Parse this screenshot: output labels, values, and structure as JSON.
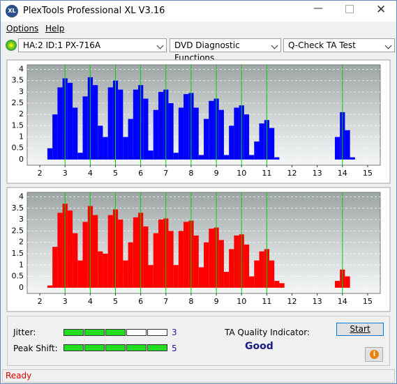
{
  "window": {
    "title": "PlexTools Professional XL V3.16",
    "status": "Ready"
  },
  "menu": [
    "Options",
    "Help"
  ],
  "toolbar": {
    "drive": "HA:2 ID:1  PX-716A",
    "function": "DVD Diagnostic Functions",
    "test": "Q-Check TA Test"
  },
  "chart_data": [
    {
      "type": "bar",
      "color": "#0000ff",
      "reference_color": "#00d000",
      "x": [
        2.4,
        2.6,
        2.8,
        3.0,
        3.2,
        3.4,
        3.6,
        3.8,
        4.0,
        4.2,
        4.4,
        4.6,
        4.8,
        5.0,
        5.2,
        5.4,
        5.6,
        5.8,
        6.0,
        6.2,
        6.4,
        6.6,
        6.8,
        7.0,
        7.2,
        7.4,
        7.6,
        7.8,
        8.0,
        8.2,
        8.4,
        8.6,
        8.8,
        9.0,
        9.2,
        9.4,
        9.6,
        9.8,
        10.0,
        10.2,
        10.4,
        10.6,
        10.8,
        11.0,
        11.2,
        11.4,
        11.6,
        11.8,
        12.0,
        12.2,
        12.4,
        12.6,
        12.8,
        13.0,
        13.2,
        13.4,
        13.6,
        13.8,
        14.0,
        14.2,
        14.4,
        14.6
      ],
      "values": [
        0.5,
        2.0,
        3.2,
        3.6,
        3.4,
        2.3,
        0.3,
        2.8,
        3.65,
        3.3,
        1.5,
        1.0,
        3.2,
        3.5,
        3.1,
        1.0,
        1.8,
        3.1,
        3.3,
        2.7,
        0.4,
        2.2,
        3.0,
        3.1,
        2.5,
        0.3,
        2.3,
        2.9,
        2.95,
        2.3,
        0.2,
        1.8,
        2.6,
        2.7,
        2.2,
        0.2,
        1.5,
        2.3,
        2.4,
        2.0,
        0.2,
        0.8,
        1.6,
        1.75,
        1.4,
        0.1,
        0,
        0,
        0,
        0,
        0,
        0,
        0,
        0,
        0,
        0,
        0,
        1.0,
        2.1,
        1.3,
        0.1,
        0
      ],
      "reference_lines": [
        3,
        4,
        5,
        6,
        7,
        8,
        9,
        10,
        11,
        14
      ],
      "xlim": [
        1.5,
        15.5
      ],
      "ylim": [
        -0.25,
        4.2
      ],
      "xticks": [
        2,
        3,
        4,
        5,
        6,
        7,
        8,
        9,
        10,
        11,
        12,
        13,
        14,
        15
      ],
      "yticks": [
        0,
        0.5,
        1,
        1.5,
        2,
        2.5,
        3,
        3.5,
        4
      ],
      "grid": true
    },
    {
      "type": "bar",
      "color": "#ff0000",
      "reference_color": "#00d000",
      "x": [
        2.4,
        2.6,
        2.8,
        3.0,
        3.2,
        3.4,
        3.6,
        3.8,
        4.0,
        4.2,
        4.4,
        4.6,
        4.8,
        5.0,
        5.2,
        5.4,
        5.6,
        5.8,
        6.0,
        6.2,
        6.4,
        6.6,
        6.8,
        7.0,
        7.2,
        7.4,
        7.6,
        7.8,
        8.0,
        8.2,
        8.4,
        8.6,
        8.8,
        9.0,
        9.2,
        9.4,
        9.6,
        9.8,
        10.0,
        10.2,
        10.4,
        10.6,
        10.8,
        11.0,
        11.2,
        11.4,
        11.6,
        11.8,
        12.0,
        12.2,
        12.4,
        12.6,
        12.8,
        13.0,
        13.2,
        13.4,
        13.6,
        13.8,
        14.0,
        14.2,
        14.4,
        14.6
      ],
      "values": [
        0.1,
        1.8,
        3.3,
        3.7,
        3.4,
        2.4,
        1.2,
        2.9,
        3.6,
        3.2,
        1.6,
        1.5,
        3.2,
        3.45,
        3.0,
        1.2,
        2.0,
        3.1,
        3.3,
        2.7,
        1.0,
        2.4,
        3.0,
        3.05,
        2.5,
        1.0,
        2.5,
        2.9,
        2.95,
        2.3,
        0.9,
        2.0,
        2.6,
        2.65,
        2.1,
        0.7,
        1.7,
        2.3,
        2.35,
        1.9,
        0.5,
        1.2,
        1.6,
        1.7,
        1.2,
        0.3,
        0.2,
        0,
        0,
        0,
        0,
        0,
        0,
        0,
        0,
        0,
        0,
        0.3,
        0.8,
        0.5,
        0,
        0
      ],
      "reference_lines": [
        3,
        4,
        5,
        6,
        7,
        8,
        9,
        10,
        11,
        14
      ],
      "xlim": [
        1.5,
        15.5
      ],
      "ylim": [
        -0.25,
        4.2
      ],
      "xticks": [
        2,
        3,
        4,
        5,
        6,
        7,
        8,
        9,
        10,
        11,
        12,
        13,
        14,
        15
      ],
      "yticks": [
        0,
        0.5,
        1,
        1.5,
        2,
        2.5,
        3,
        3.5,
        4
      ],
      "grid": true
    }
  ],
  "results": {
    "jitter": {
      "label": "Jitter:",
      "value": 3,
      "meter_max": 5
    },
    "peak_shift": {
      "label": "Peak Shift:",
      "value": 5,
      "meter_max": 5
    },
    "quality_label": "TA Quality Indicator:",
    "quality": "Good",
    "start": "Start"
  }
}
